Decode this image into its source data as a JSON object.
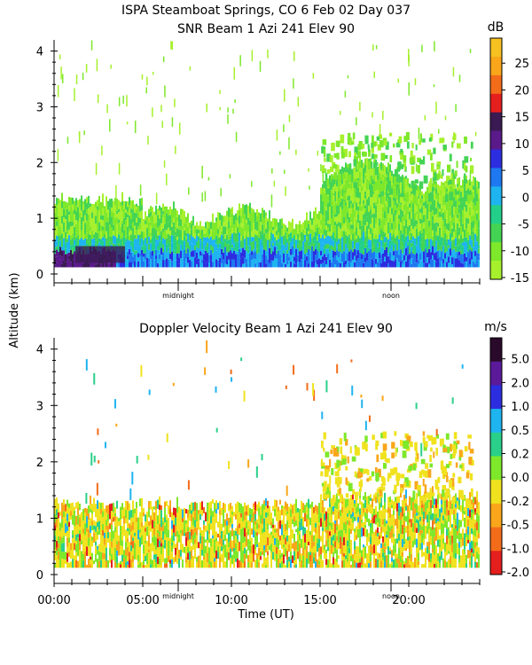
{
  "title_line1": "ISPA Steamboat Springs, CO   6 Feb 02 Day 037",
  "y_axis_label": "Altitude (km)",
  "x_axis_label": "Time (UT)",
  "marker_labels": {
    "midnight": "midnight",
    "noon": "noon"
  },
  "chart_data": [
    {
      "type": "heatmap",
      "id": "snr",
      "title": "SNR Beam 1 Azi 241 Elev 90",
      "ylabel": "Altitude (km)",
      "xlabel": "",
      "ylim": [
        0,
        4.2
      ],
      "xlim_hours": [
        0,
        24
      ],
      "y_ticks": [
        "0",
        "1",
        "2",
        "3",
        "4"
      ],
      "y_tick_values": [
        0,
        1,
        2,
        3,
        4
      ],
      "colorbar": {
        "unit": "dB",
        "labels": [
          "25",
          "20",
          "15",
          "10",
          "5",
          "0",
          "-5",
          "-10",
          "-15"
        ],
        "colors": [
          "#f7c221",
          "#f9a61a",
          "#f36c1a",
          "#e51e1e",
          "#3a1a52",
          "#5a1a8a",
          "#2d2de0",
          "#1e78f0",
          "#1eb4f0",
          "#22d08a",
          "#44d454",
          "#7ee82a",
          "#a6f02c"
        ]
      },
      "day_markers_hours": {
        "midnight": 7,
        "noon": 19
      }
    },
    {
      "type": "heatmap",
      "id": "doppler",
      "title": "Doppler Velocity Beam 1 Azi 241 Elev 90",
      "ylabel": "Altitude (km)",
      "xlabel": "Time (UT)",
      "ylim": [
        0,
        4.2
      ],
      "xlim_hours": [
        0,
        24
      ],
      "y_ticks": [
        "0",
        "1",
        "2",
        "3",
        "4"
      ],
      "y_tick_values": [
        0,
        1,
        2,
        3,
        4
      ],
      "x_ticks": [
        "00:00",
        "05:00",
        "10:00",
        "15:00",
        "20:00"
      ],
      "x_tick_values": [
        0,
        5,
        10,
        15,
        20
      ],
      "colorbar": {
        "unit": "m/s",
        "labels": [
          "5.0",
          "2.0",
          "1.0",
          "0.5",
          "0.2",
          "0.0",
          "-0.2",
          "-0.5",
          "-1.0",
          "-2.0"
        ],
        "colors": [
          "#2a0a2a",
          "#5a1a9a",
          "#2d2de0",
          "#1eb4f0",
          "#2ad08a",
          "#7ee82a",
          "#f0e21e",
          "#f9a61a",
          "#f36c1a",
          "#e51e1e"
        ]
      },
      "day_markers_hours": {
        "midnight": 7,
        "noon": 19
      }
    }
  ]
}
